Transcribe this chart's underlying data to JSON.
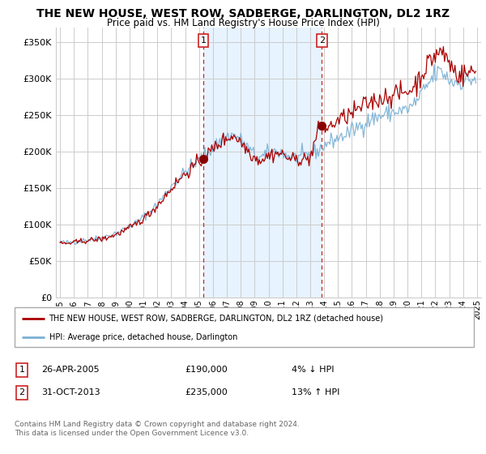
{
  "title": "THE NEW HOUSE, WEST ROW, SADBERGE, DARLINGTON, DL2 1RZ",
  "subtitle": "Price paid vs. HM Land Registry's House Price Index (HPI)",
  "title_fontsize": 10,
  "subtitle_fontsize": 8.5,
  "ylim": [
    0,
    370000
  ],
  "yticks": [
    0,
    50000,
    100000,
    150000,
    200000,
    250000,
    300000,
    350000
  ],
  "house_color": "#aa0000",
  "hpi_color": "#7ab0d4",
  "shade_color": "#ddeeff",
  "grid_color": "#cccccc",
  "background_color": "#ffffff",
  "legend_house_label": "THE NEW HOUSE, WEST ROW, SADBERGE, DARLINGTON, DL2 1RZ (detached house)",
  "legend_hpi_label": "HPI: Average price, detached house, Darlington",
  "transaction1_date": "26-APR-2005",
  "transaction1_price": "£190,000",
  "transaction1_hpi": "4% ↓ HPI",
  "transaction2_date": "31-OCT-2013",
  "transaction2_price": "£235,000",
  "transaction2_hpi": "13% ↑ HPI",
  "footer": "Contains HM Land Registry data © Crown copyright and database right 2024.\nThis data is licensed under the Open Government Licence v3.0.",
  "marker1_x": 2005.32,
  "marker1_y": 190000,
  "marker2_x": 2013.83,
  "marker2_y": 235000,
  "xlim_left": 1994.7,
  "xlim_right": 2025.3
}
